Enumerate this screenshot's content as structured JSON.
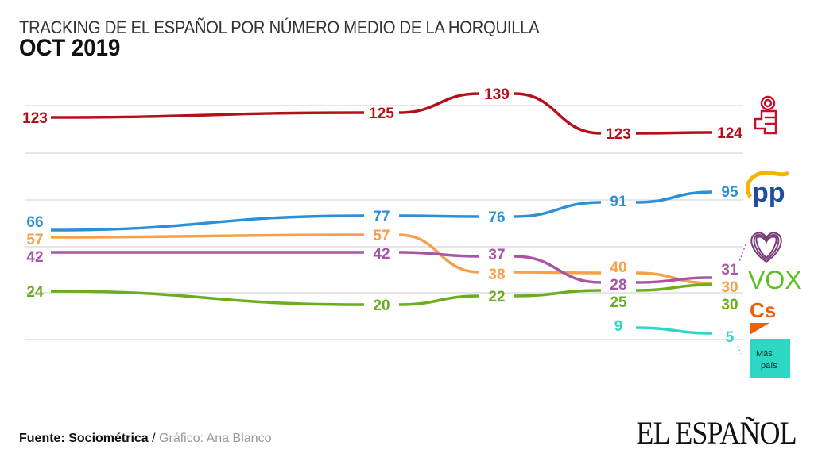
{
  "title": "TRACKING DE EL ESPAÑOL POR NÚMERO MEDIO DE LA HORQUILLA",
  "subtitle": "OCT 2019",
  "source_label": "Fuente: Sociométrica",
  "separator": " / ",
  "credit": "Gráfico: Ana Blanco",
  "brand": "EL ESPAÑOL",
  "chart_data": {
    "type": "line",
    "title": "TRACKING DE EL ESPAÑOL POR NÚMERO MEDIO DE LA HORQUILLA",
    "subtitle": "OCT 2019",
    "grid": true,
    "legend": "right (party logos)",
    "series": [
      {
        "party": "PSOE",
        "logo": "psoe-rose-fist-logo",
        "color": "#b5101a",
        "values": [
          123,
          125,
          139,
          123,
          124
        ]
      },
      {
        "party": "PP",
        "logo": "pp-logo",
        "color": "#2d8fd6",
        "values": [
          66,
          77,
          76,
          91,
          95
        ]
      },
      {
        "party": "Cs",
        "logo": "cs-logo",
        "color": "#f5a04a",
        "values": [
          57,
          57,
          38,
          40,
          30
        ]
      },
      {
        "party": "Unidas Podemos",
        "logo": "heart-logo",
        "color": "#a855a8",
        "values": [
          42,
          42,
          37,
          28,
          31
        ]
      },
      {
        "party": "VOX",
        "logo": "vox-logo",
        "color": "#6aae1f",
        "values": [
          24,
          20,
          22,
          25,
          30
        ]
      },
      {
        "party": "Más País",
        "logo": "mas-pais-logo",
        "color": "#2ed6c4",
        "values": [
          null,
          null,
          null,
          9,
          5
        ]
      }
    ],
    "logos": {
      "vox_text": "VOX",
      "cs_text": "Cs",
      "mas_pais_line1": "Más",
      "mas_pais_line2": "país"
    }
  }
}
